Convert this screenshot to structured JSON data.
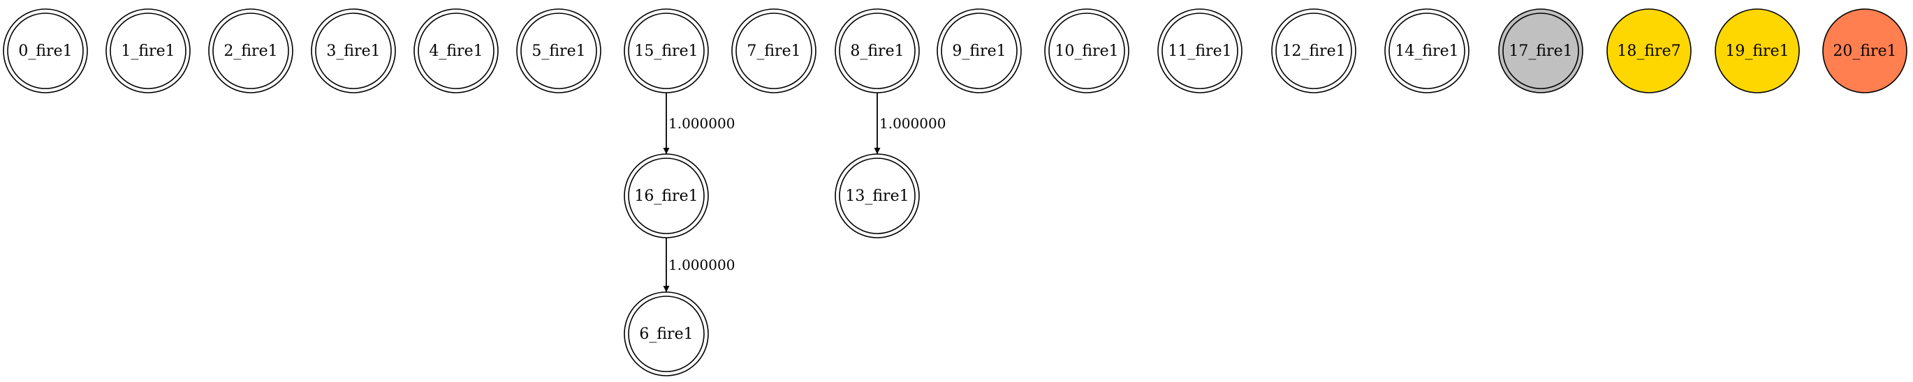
{
  "graph": {
    "nodes": [
      {
        "id": "0_fire1",
        "label": "0_fire1",
        "shape": "doublecircle",
        "fill": "#ffffff"
      },
      {
        "id": "1_fire1",
        "label": "1_fire1",
        "shape": "doublecircle",
        "fill": "#ffffff"
      },
      {
        "id": "2_fire1",
        "label": "2_fire1",
        "shape": "doublecircle",
        "fill": "#ffffff"
      },
      {
        "id": "3_fire1",
        "label": "3_fire1",
        "shape": "doublecircle",
        "fill": "#ffffff"
      },
      {
        "id": "4_fire1",
        "label": "4_fire1",
        "shape": "doublecircle",
        "fill": "#ffffff"
      },
      {
        "id": "5_fire1",
        "label": "5_fire1",
        "shape": "doublecircle",
        "fill": "#ffffff"
      },
      {
        "id": "15_fire1",
        "label": "15_fire1",
        "shape": "doublecircle",
        "fill": "#ffffff"
      },
      {
        "id": "7_fire1",
        "label": "7_fire1",
        "shape": "doublecircle",
        "fill": "#ffffff"
      },
      {
        "id": "8_fire1",
        "label": "8_fire1",
        "shape": "doublecircle",
        "fill": "#ffffff"
      },
      {
        "id": "9_fire1",
        "label": "9_fire1",
        "shape": "doublecircle",
        "fill": "#ffffff"
      },
      {
        "id": "10_fire1",
        "label": "10_fire1",
        "shape": "doublecircle",
        "fill": "#ffffff"
      },
      {
        "id": "11_fire1",
        "label": "11_fire1",
        "shape": "doublecircle",
        "fill": "#ffffff"
      },
      {
        "id": "12_fire1",
        "label": "12_fire1",
        "shape": "doublecircle",
        "fill": "#ffffff"
      },
      {
        "id": "14_fire1",
        "label": "14_fire1",
        "shape": "doublecircle",
        "fill": "#ffffff"
      },
      {
        "id": "17_fire1",
        "label": "17_fire1",
        "shape": "doublecircle",
        "fill": "#c0c0c0"
      },
      {
        "id": "18_fire7",
        "label": "18_fire7",
        "shape": "circle",
        "fill": "#ffd700"
      },
      {
        "id": "19_fire1",
        "label": "19_fire1",
        "shape": "circle",
        "fill": "#ffd700"
      },
      {
        "id": "20_fire1",
        "label": "20_fire1",
        "shape": "circle",
        "fill": "#ff7f50"
      },
      {
        "id": "16_fire1",
        "label": "16_fire1",
        "shape": "doublecircle",
        "fill": "#ffffff"
      },
      {
        "id": "13_fire1",
        "label": "13_fire1",
        "shape": "doublecircle",
        "fill": "#ffffff"
      },
      {
        "id": "6_fire1",
        "label": "6_fire1",
        "shape": "doublecircle",
        "fill": "#ffffff"
      }
    ],
    "edges": [
      {
        "from": "15_fire1",
        "to": "16_fire1",
        "label": "1.000000"
      },
      {
        "from": "8_fire1",
        "to": "13_fire1",
        "label": "1.000000"
      },
      {
        "from": "16_fire1",
        "to": "6_fire1",
        "label": "1.000000"
      }
    ]
  }
}
